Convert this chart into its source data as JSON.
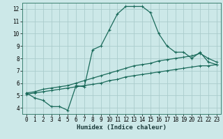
{
  "xlabel": "Humidex (Indice chaleur)",
  "background_color": "#cce8e8",
  "grid_color": "#aacccc",
  "line_color": "#1a6a5a",
  "xlim": [
    -0.5,
    23.5
  ],
  "ylim": [
    3.5,
    12.5
  ],
  "xticks": [
    0,
    1,
    2,
    3,
    4,
    5,
    6,
    7,
    8,
    9,
    10,
    11,
    12,
    13,
    14,
    15,
    16,
    17,
    18,
    19,
    20,
    21,
    22,
    23
  ],
  "yticks": [
    4,
    5,
    6,
    7,
    8,
    9,
    10,
    11,
    12
  ],
  "line1_x": [
    0,
    1,
    2,
    3,
    4,
    5,
    6,
    7,
    8,
    9,
    10,
    11,
    12,
    13,
    14,
    15,
    16,
    17,
    18,
    19,
    20,
    21,
    22,
    23
  ],
  "line1_y": [
    5.2,
    4.8,
    4.6,
    4.1,
    4.1,
    3.8,
    5.8,
    5.7,
    8.7,
    9.0,
    10.3,
    11.6,
    12.2,
    12.2,
    12.2,
    11.7,
    10.0,
    9.0,
    8.5,
    8.5,
    8.0,
    8.5,
    7.7,
    7.5
  ],
  "line2_x": [
    0,
    1,
    2,
    3,
    4,
    5,
    6,
    7,
    8,
    9,
    10,
    11,
    12,
    13,
    14,
    15,
    16,
    17,
    18,
    19,
    20,
    21,
    22,
    23
  ],
  "line2_y": [
    5.2,
    5.3,
    5.5,
    5.6,
    5.7,
    5.8,
    6.0,
    6.2,
    6.4,
    6.6,
    6.8,
    7.0,
    7.2,
    7.4,
    7.5,
    7.6,
    7.8,
    7.9,
    8.0,
    8.1,
    8.2,
    8.4,
    8.0,
    7.7
  ],
  "line3_x": [
    0,
    1,
    2,
    3,
    4,
    5,
    6,
    7,
    8,
    9,
    10,
    11,
    12,
    13,
    14,
    15,
    16,
    17,
    18,
    19,
    20,
    21,
    22,
    23
  ],
  "line3_y": [
    5.1,
    5.2,
    5.3,
    5.4,
    5.5,
    5.6,
    5.7,
    5.8,
    5.9,
    6.0,
    6.2,
    6.3,
    6.5,
    6.6,
    6.7,
    6.8,
    6.9,
    7.0,
    7.1,
    7.2,
    7.3,
    7.4,
    7.4,
    7.5
  ]
}
